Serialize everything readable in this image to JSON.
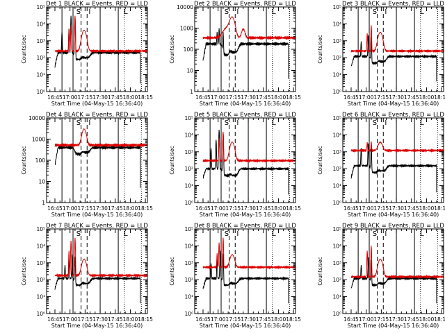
{
  "colors": {
    "events": "#000000",
    "lld": "#dd0000",
    "axes": "#000000",
    "background": "#ffffff"
  },
  "shared": {
    "xlabel": "Start Time (04-May-15 16:36:40)",
    "ylabel": "Counts/sec",
    "x_ticks": [
      "16:45",
      "17:00",
      "17:15",
      "17:30",
      "17:45",
      "18:00",
      "18:15"
    ],
    "x_tick_minutes": [
      45,
      60,
      75,
      90,
      105,
      120,
      135
    ],
    "x_range_minutes": [
      36.7,
      137
    ],
    "region_labels": [
      "S",
      "I",
      "L"
    ],
    "solid_markers_minutes": [
      52,
      63,
      90,
      108
    ],
    "dashed_markers_minutes": [
      71,
      77
    ],
    "dotted_markers_minutes": [
      114,
      131
    ],
    "region_label_minutes": [
      68.5,
      79.5,
      115.5
    ]
  },
  "chart_data": [
    {
      "type": "line",
      "title": "Det  1  BLACK = Events,  RED = LLD",
      "y_scale": "log",
      "ylim": [
        1,
        100000
      ],
      "y_tick_labels": [
        "10⁰",
        "10¹",
        "10²",
        "10³",
        "10⁴",
        "10⁵"
      ],
      "series": [
        {
          "name": "Events (BLACK)",
          "start_minute": 45,
          "end_minute": 130,
          "base": 200,
          "start_level": 30,
          "spikes": [
            {
              "t": 52,
              "v": 3000
            },
            {
              "t": 59,
              "v": 5000
            },
            {
              "t": 61,
              "v": 30000
            },
            {
              "t": 65,
              "v": 40000
            }
          ],
          "bumps": [],
          "dips": [
            {
              "t": 68,
              "w": 4,
              "v": 0.4
            },
            {
              "t": 76,
              "w": 5,
              "v": 0.5
            }
          ],
          "end_level": 3
        },
        {
          "name": "LLD (RED)",
          "start_minute": 45,
          "end_minute": 137,
          "base": 250,
          "spikes": [
            {
              "t": 59,
              "v": 4000
            },
            {
              "t": 61,
              "v": 8000
            },
            {
              "t": 65,
              "v": 30000
            }
          ],
          "bumps": [
            {
              "t": 74,
              "w": 2.5,
              "v": 4000
            }
          ],
          "dips": [],
          "end_level": 220
        }
      ]
    },
    {
      "type": "line",
      "title": "Det  2  BLACK = Events,  RED = LLD",
      "y_scale": "log",
      "ylim": [
        1,
        10000
      ],
      "y_tick_labels": [
        "1",
        "10",
        "100",
        "1000",
        "10000"
      ],
      "series": [
        {
          "name": "Events (BLACK)",
          "start_minute": 45,
          "end_minute": 130,
          "base": 180,
          "start_level": 30,
          "spikes": [
            {
              "t": 59,
              "v": 500
            },
            {
              "t": 61,
              "v": 800
            },
            {
              "t": 65,
              "v": 1200
            }
          ],
          "bumps": [],
          "dips": [
            {
              "t": 68,
              "w": 4,
              "v": 0.3
            },
            {
              "t": 76,
              "w": 5,
              "v": 0.4
            }
          ],
          "end_level": 4
        },
        {
          "name": "LLD (RED)",
          "start_minute": 45,
          "end_minute": 137,
          "base": 350,
          "spikes": [],
          "bumps": [
            {
              "t": 69,
              "w": 5,
              "v": 700
            },
            {
              "t": 74,
              "w": 3,
              "v": 2800
            },
            {
              "t": 85,
              "w": 2,
              "v": 550
            }
          ],
          "dips": [],
          "end_level": 300
        }
      ]
    },
    {
      "type": "line",
      "title": "Det  3  BLACK = Events,  RED = LLD",
      "y_scale": "log",
      "ylim": [
        1,
        100000
      ],
      "y_tick_labels": [
        "10⁰",
        "10¹",
        "10²",
        "10³",
        "10⁴",
        "10⁵"
      ],
      "series": [
        {
          "name": "Events (BLACK)",
          "start_minute": 45,
          "end_minute": 130,
          "base": 120,
          "start_level": 30,
          "spikes": [
            {
              "t": 55,
              "v": 800
            },
            {
              "t": 62,
              "v": 2000
            },
            {
              "t": 65,
              "v": 3000
            }
          ],
          "bumps": [],
          "dips": [
            {
              "t": 68,
              "w": 4,
              "v": 0.4
            },
            {
              "t": 76,
              "w": 5,
              "v": 0.5
            }
          ],
          "end_level": 4
        },
        {
          "name": "LLD (RED)",
          "start_minute": 45,
          "end_minute": 137,
          "base": 250,
          "spikes": [
            {
              "t": 61,
              "v": 2500
            },
            {
              "t": 65,
              "v": 8000
            }
          ],
          "bumps": [
            {
              "t": 74,
              "w": 2.5,
              "v": 3000
            }
          ],
          "dips": [],
          "end_level": 220
        }
      ]
    },
    {
      "type": "line",
      "title": "Det  4  BLACK = Events,  RED = LLD",
      "y_scale": "log",
      "ylim": [
        1,
        10000
      ],
      "y_tick_labels": [
        "1",
        "10",
        "100",
        "1000",
        "10000"
      ],
      "series": [
        {
          "name": "Events (BLACK)",
          "start_minute": 45,
          "end_minute": 130,
          "base": 400,
          "start_level": 60,
          "spikes": [],
          "bumps": [],
          "dips": [
            {
              "t": 68,
              "w": 4,
              "v": 0.5
            },
            {
              "t": 76,
              "w": 5,
              "v": 0.6
            }
          ],
          "end_level": 5
        },
        {
          "name": "LLD (RED)",
          "start_minute": 45,
          "end_minute": 137,
          "base": 520,
          "spikes": [],
          "bumps": [
            {
              "t": 74,
              "w": 2.5,
              "v": 2500
            }
          ],
          "dips": [],
          "end_level": 500
        }
      ]
    },
    {
      "type": "line",
      "title": "Det  5  BLACK = Events,  RED = LLD",
      "y_scale": "log",
      "ylim": [
        1,
        100000
      ],
      "y_tick_labels": [
        "10⁰",
        "10¹",
        "10²",
        "10³",
        "10⁴",
        "10⁵"
      ],
      "series": [
        {
          "name": "Events (BLACK)",
          "start_minute": 45,
          "end_minute": 130,
          "base": 100,
          "start_level": 30,
          "spikes": [
            {
              "t": 53,
              "v": 1500
            },
            {
              "t": 58,
              "v": 5000
            },
            {
              "t": 61,
              "v": 20000
            },
            {
              "t": 65,
              "v": 25000
            }
          ],
          "bumps": [],
          "dips": [
            {
              "t": 68,
              "w": 4,
              "v": 0.4
            },
            {
              "t": 76,
              "w": 5,
              "v": 0.4
            }
          ],
          "end_level": 3
        },
        {
          "name": "LLD (RED)",
          "start_minute": 45,
          "end_minute": 137,
          "base": 300,
          "spikes": [
            {
              "t": 61,
              "v": 6000
            },
            {
              "t": 65,
              "v": 15000
            }
          ],
          "bumps": [
            {
              "t": 74,
              "w": 2.5,
              "v": 3500
            }
          ],
          "dips": [],
          "end_level": 300
        }
      ]
    },
    {
      "type": "line",
      "title": "Det  6  BLACK = Events,  RED = LLD",
      "y_scale": "log",
      "ylim": [
        1,
        100000
      ],
      "y_tick_labels": [
        "10⁰",
        "10¹",
        "10²",
        "10³",
        "10⁴",
        "10⁵"
      ],
      "series": [
        {
          "name": "Events (BLACK)",
          "start_minute": 45,
          "end_minute": 130,
          "base": 150,
          "start_level": 30,
          "spikes": [
            {
              "t": 55,
              "v": 1500
            },
            {
              "t": 62,
              "v": 3000
            },
            {
              "t": 65,
              "v": 4000
            }
          ],
          "bumps": [],
          "dips": [
            {
              "t": 68,
              "w": 4,
              "v": 0.4
            },
            {
              "t": 76,
              "w": 5,
              "v": 0.5
            }
          ],
          "end_level": 4
        },
        {
          "name": "LLD (RED)",
          "start_minute": 45,
          "end_minute": 137,
          "base": 1200,
          "spikes": [
            {
              "t": 61,
              "v": 2500
            },
            {
              "t": 65,
              "v": 3000
            }
          ],
          "bumps": [
            {
              "t": 74,
              "w": 2.5,
              "v": 2500
            }
          ],
          "dips": [],
          "end_level": 1300
        }
      ]
    },
    {
      "type": "line",
      "title": "Det  7  BLACK = Events,  RED = LLD",
      "y_scale": "log",
      "ylim": [
        1,
        100000
      ],
      "y_tick_labels": [
        "10⁰",
        "10¹",
        "10²",
        "10³",
        "10⁴",
        "10⁵"
      ],
      "series": [
        {
          "name": "Events (BLACK)",
          "start_minute": 45,
          "end_minute": 130,
          "base": 120,
          "start_level": 30,
          "spikes": [
            {
              "t": 55,
              "v": 600
            },
            {
              "t": 59,
              "v": 1500
            },
            {
              "t": 62,
              "v": 3000
            },
            {
              "t": 65,
              "v": 4000
            }
          ],
          "bumps": [],
          "dips": [
            {
              "t": 68,
              "w": 4,
              "v": 0.4
            },
            {
              "t": 76,
              "w": 5,
              "v": 0.5
            }
          ],
          "end_level": 4
        },
        {
          "name": "LLD (RED)",
          "start_minute": 45,
          "end_minute": 137,
          "base": 180,
          "spikes": [
            {
              "t": 59,
              "v": 5000
            },
            {
              "t": 61,
              "v": 20000
            },
            {
              "t": 65,
              "v": 30000
            }
          ],
          "bumps": [
            {
              "t": 74,
              "w": 2.5,
              "v": 1500
            }
          ],
          "dips": [],
          "end_level": 180
        }
      ]
    },
    {
      "type": "line",
      "title": "Det  8  BLACK = Events,  RED = LLD",
      "y_scale": "log",
      "ylim": [
        1,
        100000
      ],
      "y_tick_labels": [
        "10⁰",
        "10¹",
        "10²",
        "10³",
        "10⁴",
        "10⁵"
      ],
      "series": [
        {
          "name": "Events (BLACK)",
          "start_minute": 45,
          "end_minute": 130,
          "base": 120,
          "start_level": 30,
          "spikes": [
            {
              "t": 53,
              "v": 800
            },
            {
              "t": 59,
              "v": 2000
            },
            {
              "t": 62,
              "v": 5000
            },
            {
              "t": 65,
              "v": 6000
            }
          ],
          "bumps": [],
          "dips": [
            {
              "t": 68,
              "w": 4,
              "v": 0.4
            },
            {
              "t": 76,
              "w": 5,
              "v": 0.5
            }
          ],
          "end_level": 4
        },
        {
          "name": "LLD (RED)",
          "start_minute": 45,
          "end_minute": 137,
          "base": 550,
          "spikes": [
            {
              "t": 59,
              "v": 3000
            },
            {
              "t": 61,
              "v": 15000
            },
            {
              "t": 65,
              "v": 30000
            }
          ],
          "bumps": [
            {
              "t": 74,
              "w": 2.5,
              "v": 2500
            }
          ],
          "dips": [],
          "end_level": 600
        }
      ]
    },
    {
      "type": "line",
      "title": "Det  9  BLACK = Events,  RED = LLD",
      "y_scale": "log",
      "ylim": [
        1,
        100000
      ],
      "y_tick_labels": [
        "10⁰",
        "10¹",
        "10²",
        "10³",
        "10⁴",
        "10⁵"
      ],
      "series": [
        {
          "name": "Events (BLACK)",
          "start_minute": 45,
          "end_minute": 130,
          "base": 120,
          "start_level": 30,
          "spikes": [
            {
              "t": 55,
              "v": 600
            },
            {
              "t": 62,
              "v": 2000
            },
            {
              "t": 65,
              "v": 2500
            }
          ],
          "bumps": [],
          "dips": [
            {
              "t": 68,
              "w": 4,
              "v": 0.4
            },
            {
              "t": 76,
              "w": 5,
              "v": 0.5
            }
          ],
          "end_level": 4
        },
        {
          "name": "LLD (RED)",
          "start_minute": 45,
          "end_minute": 137,
          "base": 150,
          "spikes": [
            {
              "t": 61,
              "v": 5000
            },
            {
              "t": 65,
              "v": 10000
            }
          ],
          "bumps": [
            {
              "t": 74,
              "w": 2.5,
              "v": 1500
            }
          ],
          "dips": [],
          "end_level": 150
        }
      ]
    }
  ]
}
